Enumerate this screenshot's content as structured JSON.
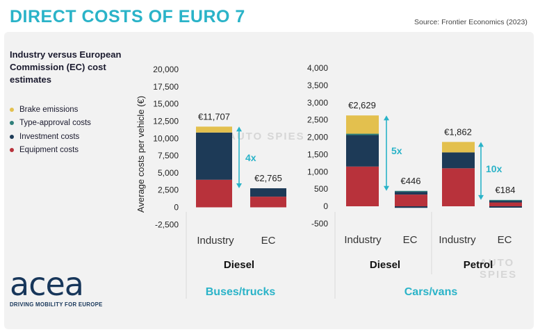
{
  "header": {
    "title": "DIRECT COSTS OF EURO 7",
    "source": "Source: Frontier Economics (2023)"
  },
  "subtitle": "Industry versus European Commission (EC) cost estimates",
  "legend": [
    {
      "label": "Brake emissions",
      "color": "#e3c04e"
    },
    {
      "label": "Type-approval costs",
      "color": "#2f7f7a"
    },
    {
      "label": "Investment costs",
      "color": "#1d3a57"
    },
    {
      "label": "Equipment costs",
      "color": "#b8323b"
    }
  ],
  "logo": {
    "word": "acea",
    "tagline": "DRIVING MOBILITY FOR EUROPE"
  },
  "watermark": "AUTO SPIES",
  "chart_data": [
    {
      "type": "bar",
      "stacked": true,
      "panel": "Buses/trucks",
      "group": "Diesel",
      "ylabel": "Average costs per vehicle (€)",
      "ylim": [
        -2500,
        20000
      ],
      "yticks": [
        -2500,
        0,
        2500,
        5000,
        7500,
        10000,
        12500,
        15000,
        17500,
        20000
      ],
      "ytick_labels": [
        "-2,500",
        "0",
        "2,500",
        "5,000",
        "7,500",
        "10,000",
        "12,500",
        "15,000",
        "17,500",
        "20,000"
      ],
      "categories": [
        "Industry",
        "EC"
      ],
      "series": [
        {
          "name": "Equipment costs",
          "color": "#b8323b",
          "values": [
            4000,
            1550
          ]
        },
        {
          "name": "Investment costs",
          "color": "#1d3a57",
          "values": [
            6850,
            1215
          ]
        },
        {
          "name": "Type-approval costs",
          "color": "#2f7f7a",
          "values": [
            0,
            0
          ]
        },
        {
          "name": "Brake emissions",
          "color": "#e3c04e",
          "values": [
            857,
            0
          ]
        }
      ],
      "totals": [
        11707,
        2765
      ],
      "total_labels": [
        "€11,707",
        "€2,765"
      ],
      "ratio_label": "4x"
    },
    {
      "type": "bar",
      "stacked": true,
      "panel": "Cars/vans",
      "groups": [
        "Diesel",
        "Petrol"
      ],
      "ylim": [
        -500,
        4000
      ],
      "yticks": [
        -500,
        0,
        500,
        1000,
        1500,
        2000,
        2500,
        3000,
        3500,
        4000
      ],
      "ytick_labels": [
        "-500",
        "0",
        "500",
        "1,000",
        "1,500",
        "2,000",
        "2,500",
        "3,000",
        "3,500",
        "4,000"
      ],
      "categories": [
        "Industry",
        "EC",
        "Industry",
        "EC"
      ],
      "series": [
        {
          "name": "Equipment costs",
          "color": "#b8323b",
          "values": [
            1150,
            340,
            1100,
            110
          ]
        },
        {
          "name": "Investment costs",
          "color": "#1d3a57",
          "values": [
            910,
            80,
            460,
            50
          ]
        },
        {
          "name": "Type-approval costs",
          "color": "#2f7f7a",
          "values": [
            40,
            26,
            0,
            24
          ]
        },
        {
          "name": "Brake emissions",
          "color": "#e3c04e",
          "values": [
            529,
            0,
            302,
            0
          ]
        }
      ],
      "negative": [
        0,
        -45,
        0,
        -40
      ],
      "totals": [
        2629,
        446,
        1862,
        184
      ],
      "total_labels": [
        "€2,629",
        "€446",
        "€1,862",
        "€184"
      ],
      "ratio_labels": [
        "5x",
        "10x"
      ]
    }
  ]
}
